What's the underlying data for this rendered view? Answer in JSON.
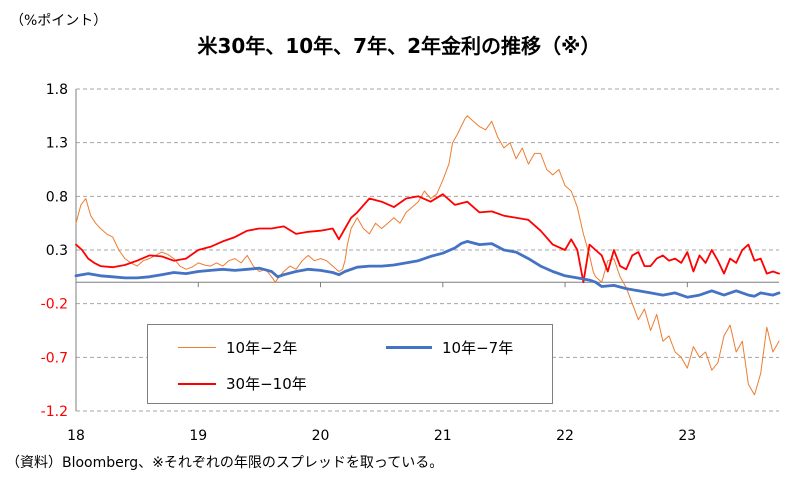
{
  "unit_label": "（%ポイント）",
  "title": "米30年、10年、7年、2年金利の推移（※）",
  "source": "（資料）Bloomberg、※それぞれの年限のスプレッドを取っている。",
  "colors": {
    "s10_2": "#ed7d31",
    "s10_7": "#4472c4",
    "s30_10": "#ff0000",
    "neg_tick": "#ff0000",
    "grid": "#a6a6a6"
  },
  "legend": [
    {
      "label": "10年−2年"
    },
    {
      "label": "10年−7年"
    },
    {
      "label": "30年−10年"
    }
  ],
  "chart_data": {
    "type": "line",
    "ylim": [
      -1.2,
      1.8
    ],
    "yticks": [
      "1.8",
      "1.3",
      "0.8",
      "0.3",
      "-0.2",
      "-0.7",
      "-1.2"
    ],
    "xlim": [
      2018.0,
      2023.75
    ],
    "xticks": [
      {
        "v": 2018,
        "label": "18"
      },
      {
        "v": 2019,
        "label": "19"
      },
      {
        "v": 2020,
        "label": "20"
      },
      {
        "v": 2021,
        "label": "21"
      },
      {
        "v": 2022,
        "label": "22"
      },
      {
        "v": 2023,
        "label": "23"
      }
    ],
    "grid": "horizontal dashed",
    "legend_position": "bottom-left inside",
    "series": [
      {
        "name": "10年−2年",
        "x": [
          2018.0,
          2018.04,
          2018.08,
          2018.12,
          2018.16,
          2018.2,
          2018.25,
          2018.3,
          2018.35,
          2018.4,
          2018.45,
          2018.5,
          2018.55,
          2018.6,
          2018.65,
          2018.7,
          2018.75,
          2018.8,
          2018.85,
          2018.9,
          2018.95,
          2019.0,
          2019.05,
          2019.1,
          2019.15,
          2019.2,
          2019.25,
          2019.3,
          2019.35,
          2019.4,
          2019.45,
          2019.5,
          2019.55,
          2019.6,
          2019.63,
          2019.66,
          2019.7,
          2019.75,
          2019.8,
          2019.85,
          2019.9,
          2019.95,
          2020.0,
          2020.05,
          2020.1,
          2020.15,
          2020.18,
          2020.2,
          2020.22,
          2020.25,
          2020.3,
          2020.35,
          2020.4,
          2020.45,
          2020.5,
          2020.55,
          2020.6,
          2020.65,
          2020.7,
          2020.75,
          2020.8,
          2020.85,
          2020.9,
          2020.95,
          2021.0,
          2021.05,
          2021.08,
          2021.12,
          2021.15,
          2021.18,
          2021.2,
          2021.25,
          2021.3,
          2021.35,
          2021.4,
          2021.45,
          2021.5,
          2021.55,
          2021.6,
          2021.65,
          2021.7,
          2021.75,
          2021.8,
          2021.85,
          2021.9,
          2021.95,
          2022.0,
          2022.05,
          2022.1,
          2022.15,
          2022.2,
          2022.23,
          2022.25,
          2022.3,
          2022.35,
          2022.4,
          2022.45,
          2022.5,
          2022.55,
          2022.6,
          2022.65,
          2022.7,
          2022.75,
          2022.8,
          2022.85,
          2022.9,
          2022.95,
          2023.0,
          2023.05,
          2023.1,
          2023.15,
          2023.2,
          2023.25,
          2023.3,
          2023.35,
          2023.4,
          2023.45,
          2023.5,
          2023.55,
          2023.6,
          2023.65,
          2023.7,
          2023.75
        ],
        "y": [
          0.55,
          0.72,
          0.78,
          0.62,
          0.55,
          0.5,
          0.45,
          0.42,
          0.3,
          0.22,
          0.18,
          0.15,
          0.2,
          0.22,
          0.25,
          0.28,
          0.26,
          0.22,
          0.15,
          0.12,
          0.14,
          0.18,
          0.16,
          0.15,
          0.18,
          0.15,
          0.2,
          0.22,
          0.18,
          0.25,
          0.15,
          0.1,
          0.12,
          0.05,
          0.0,
          0.05,
          0.1,
          0.15,
          0.12,
          0.2,
          0.25,
          0.2,
          0.22,
          0.2,
          0.15,
          0.1,
          0.12,
          0.2,
          0.35,
          0.5,
          0.6,
          0.5,
          0.45,
          0.55,
          0.5,
          0.55,
          0.6,
          0.55,
          0.65,
          0.7,
          0.75,
          0.85,
          0.78,
          0.82,
          0.95,
          1.1,
          1.3,
          1.38,
          1.45,
          1.52,
          1.55,
          1.5,
          1.45,
          1.42,
          1.5,
          1.35,
          1.25,
          1.3,
          1.15,
          1.25,
          1.1,
          1.2,
          1.2,
          1.05,
          1.0,
          1.05,
          0.9,
          0.85,
          0.7,
          0.45,
          0.25,
          0.1,
          0.05,
          0.0,
          0.2,
          0.22,
          0.05,
          -0.05,
          -0.2,
          -0.35,
          -0.25,
          -0.45,
          -0.3,
          -0.55,
          -0.5,
          -0.65,
          -0.7,
          -0.8,
          -0.6,
          -0.7,
          -0.65,
          -0.82,
          -0.75,
          -0.5,
          -0.4,
          -0.65,
          -0.55,
          -0.95,
          -1.05,
          -0.85,
          -0.42,
          -0.65,
          -0.55
        ]
      },
      {
        "name": "10年−7年",
        "x": [
          2018.0,
          2018.1,
          2018.2,
          2018.3,
          2018.4,
          2018.5,
          2018.6,
          2018.7,
          2018.8,
          2018.9,
          2019.0,
          2019.1,
          2019.2,
          2019.3,
          2019.4,
          2019.5,
          2019.6,
          2019.65,
          2019.7,
          2019.8,
          2019.9,
          2020.0,
          2020.1,
          2020.15,
          2020.2,
          2020.3,
          2020.4,
          2020.5,
          2020.6,
          2020.7,
          2020.8,
          2020.9,
          2021.0,
          2021.1,
          2021.15,
          2021.2,
          2021.3,
          2021.4,
          2021.5,
          2021.6,
          2021.7,
          2021.8,
          2021.9,
          2022.0,
          2022.1,
          2022.2,
          2022.25,
          2022.3,
          2022.4,
          2022.5,
          2022.6,
          2022.7,
          2022.8,
          2022.9,
          2023.0,
          2023.1,
          2023.2,
          2023.3,
          2023.4,
          2023.5,
          2023.55,
          2023.6,
          2023.7,
          2023.75
        ],
        "y": [
          0.06,
          0.08,
          0.06,
          0.05,
          0.04,
          0.04,
          0.05,
          0.07,
          0.09,
          0.08,
          0.1,
          0.11,
          0.12,
          0.11,
          0.12,
          0.13,
          0.1,
          0.05,
          0.07,
          0.1,
          0.12,
          0.11,
          0.09,
          0.07,
          0.1,
          0.14,
          0.15,
          0.15,
          0.16,
          0.18,
          0.2,
          0.24,
          0.27,
          0.32,
          0.36,
          0.38,
          0.35,
          0.36,
          0.3,
          0.28,
          0.22,
          0.15,
          0.1,
          0.06,
          0.04,
          0.02,
          0.0,
          -0.04,
          -0.03,
          -0.06,
          -0.08,
          -0.1,
          -0.12,
          -0.1,
          -0.14,
          -0.12,
          -0.08,
          -0.12,
          -0.08,
          -0.12,
          -0.13,
          -0.1,
          -0.12,
          -0.1
        ]
      },
      {
        "name": "30年−10年",
        "x": [
          2018.0,
          2018.05,
          2018.1,
          2018.15,
          2018.2,
          2018.3,
          2018.4,
          2018.5,
          2018.6,
          2018.7,
          2018.8,
          2018.9,
          2019.0,
          2019.1,
          2019.2,
          2019.3,
          2019.4,
          2019.5,
          2019.6,
          2019.7,
          2019.8,
          2019.9,
          2020.0,
          2020.1,
          2020.15,
          2020.2,
          2020.25,
          2020.3,
          2020.4,
          2020.5,
          2020.6,
          2020.7,
          2020.8,
          2020.9,
          2021.0,
          2021.1,
          2021.2,
          2021.3,
          2021.4,
          2021.5,
          2021.6,
          2021.7,
          2021.8,
          2021.9,
          2022.0,
          2022.05,
          2022.1,
          2022.15,
          2022.2,
          2022.25,
          2022.3,
          2022.35,
          2022.4,
          2022.45,
          2022.5,
          2022.55,
          2022.6,
          2022.65,
          2022.7,
          2022.75,
          2022.8,
          2022.85,
          2022.9,
          2022.95,
          2023.0,
          2023.05,
          2023.1,
          2023.15,
          2023.2,
          2023.25,
          2023.3,
          2023.35,
          2023.4,
          2023.45,
          2023.5,
          2023.55,
          2023.6,
          2023.65,
          2023.7,
          2023.75
        ],
        "y": [
          0.35,
          0.3,
          0.22,
          0.18,
          0.15,
          0.14,
          0.16,
          0.2,
          0.25,
          0.24,
          0.2,
          0.22,
          0.3,
          0.33,
          0.38,
          0.42,
          0.48,
          0.5,
          0.5,
          0.52,
          0.45,
          0.47,
          0.48,
          0.5,
          0.4,
          0.5,
          0.6,
          0.65,
          0.78,
          0.75,
          0.7,
          0.78,
          0.8,
          0.75,
          0.82,
          0.72,
          0.75,
          0.65,
          0.66,
          0.62,
          0.6,
          0.58,
          0.48,
          0.35,
          0.3,
          0.4,
          0.3,
          0.0,
          0.35,
          0.3,
          0.25,
          0.1,
          0.3,
          0.15,
          0.12,
          0.25,
          0.28,
          0.15,
          0.15,
          0.22,
          0.25,
          0.2,
          0.22,
          0.18,
          0.28,
          0.1,
          0.25,
          0.18,
          0.3,
          0.2,
          0.08,
          0.22,
          0.18,
          0.3,
          0.35,
          0.2,
          0.22,
          0.08,
          0.1,
          0.08
        ]
      }
    ]
  }
}
